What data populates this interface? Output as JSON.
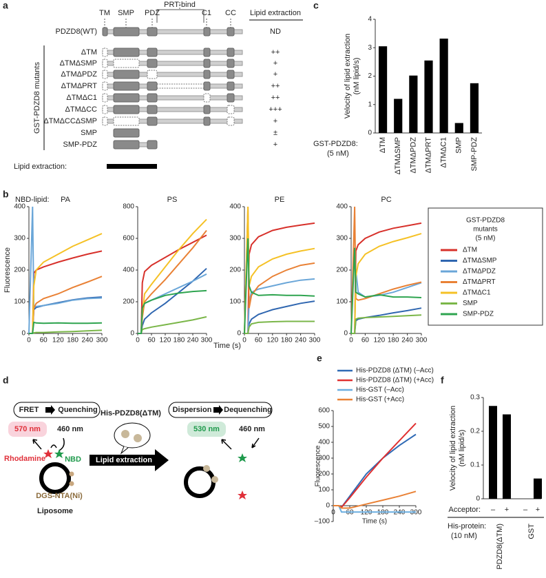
{
  "panel_labels": [
    "a",
    "b",
    "c",
    "d",
    "e",
    "f"
  ],
  "panel_a": {
    "domains": [
      "TM",
      "SMP",
      "PDZ",
      "PRT-bind",
      "C1",
      "CC"
    ],
    "header": "Lipid extraction",
    "group": "GST-PDZD8 mutants",
    "footer": "Lipid extraction:",
    "rows": [
      {
        "name": "PDZD8(WT)",
        "extraction": "ND"
      },
      {
        "name": "ΔTM",
        "extraction": "++"
      },
      {
        "name": "ΔTMΔSMP",
        "extraction": "+"
      },
      {
        "name": "ΔTMΔPDZ",
        "extraction": "+"
      },
      {
        "name": "ΔTMΔPRT",
        "extraction": "++"
      },
      {
        "name": "ΔTMΔC1",
        "extraction": "++"
      },
      {
        "name": "ΔTMΔCC",
        "extraction": "+++"
      },
      {
        "name": "ΔTMΔCCΔSMP",
        "extraction": "+"
      },
      {
        "name": "SMP",
        "extraction": "±"
      },
      {
        "name": "SMP-PDZ",
        "extraction": "+"
      }
    ]
  },
  "panel_b": {
    "prefix": "NBD-lipid:",
    "xlabel": "Time (s)",
    "ylabel": "Fluorescence",
    "legend_title": [
      "GST-PDZD8",
      "mutants",
      "(5 nM)"
    ]
  },
  "panel_d": {
    "left_box": [
      "FRET",
      "Quenching"
    ],
    "right_box": [
      "Dispersion",
      "Dequenching"
    ],
    "emission_left": "570 nm",
    "excitation_left": "460 nm",
    "acceptor": "Rhodamine",
    "donor": "NBD",
    "anchor": "DGS-NTA(Ni)",
    "vesicle": "Liposome",
    "protein": "His-PDZD8(ΔTM)",
    "arrow": "Lipid extraction",
    "emission_right": "530 nm",
    "excitation_right": "460 nm"
  },
  "chart_data": [
    {
      "type": "bar",
      "ylabel": [
        "Velocity of lipid extraction",
        "(nM lipid/s)"
      ],
      "xlabel": [
        "GST-PDZD8:",
        "(5 nM)"
      ],
      "categories": [
        "ΔTM",
        "ΔTMΔSMP",
        "ΔTMΔPDZ",
        "ΔTMΔPRT",
        "ΔTMΔC1",
        "SMP",
        "SMP-PDZ"
      ],
      "values": [
        3.05,
        1.2,
        2.02,
        2.55,
        3.32,
        0.35,
        1.75
      ],
      "color": "#000000",
      "ylim": [
        0,
        4
      ],
      "yticks": [
        0,
        1,
        2,
        3,
        4
      ]
    },
    {
      "type": "line",
      "title": "PA",
      "x": [
        0,
        15,
        20,
        30,
        60,
        120,
        180,
        240,
        300
      ],
      "xlim": [
        0,
        300
      ],
      "xticks": [
        0,
        60,
        120,
        180,
        240,
        300
      ],
      "ylim": [
        0,
        400
      ],
      "yticks": [
        0,
        100,
        200,
        300,
        400
      ],
      "series": [
        {
          "name": "ΔTM",
          "color": "#d7302a",
          "values": [
            0,
            0,
            190,
            200,
            210,
            225,
            238,
            250,
            260
          ]
        },
        {
          "name": "ΔTMΔSMP",
          "color": "#2f66b0",
          "values": [
            0,
            0,
            75,
            82,
            88,
            97,
            106,
            112,
            115
          ]
        },
        {
          "name": "ΔTMΔPDZ",
          "color": "#6aa6d8",
          "values": [
            0,
            400,
            85,
            85,
            88,
            95,
            105,
            110,
            112
          ]
        },
        {
          "name": "ΔTMΔPRT",
          "color": "#e98135",
          "values": [
            0,
            0,
            80,
            95,
            110,
            125,
            145,
            162,
            180
          ]
        },
        {
          "name": "ΔTMΔC1",
          "color": "#f5c125",
          "values": [
            0,
            0,
            150,
            200,
            225,
            250,
            275,
            295,
            315
          ]
        },
        {
          "name": "SMP",
          "color": "#7ab648",
          "values": [
            0,
            0,
            2,
            3,
            3,
            5,
            6,
            8,
            10
          ]
        },
        {
          "name": "SMP-PDZ",
          "color": "#2ea44f",
          "values": [
            0,
            0,
            35,
            33,
            32,
            33,
            32,
            32,
            33
          ]
        }
      ]
    },
    {
      "type": "line",
      "title": "PS",
      "x": [
        0,
        15,
        20,
        30,
        60,
        120,
        180,
        240,
        300
      ],
      "xlim": [
        0,
        300
      ],
      "xticks": [
        0,
        60,
        120,
        180,
        240,
        300
      ],
      "ylim": [
        0,
        800
      ],
      "yticks": [
        0,
        200,
        400,
        600,
        800
      ],
      "series": [
        {
          "color": "#d7302a",
          "values": [
            0,
            0,
            320,
            390,
            430,
            480,
            530,
            575,
            620
          ]
        },
        {
          "color": "#2f66b0",
          "values": [
            0,
            0,
            50,
            90,
            130,
            190,
            260,
            330,
            410
          ]
        },
        {
          "color": "#6aa6d8",
          "values": [
            0,
            0,
            150,
            190,
            210,
            250,
            290,
            330,
            375
          ]
        },
        {
          "color": "#e98135",
          "values": [
            0,
            0,
            100,
            200,
            250,
            340,
            440,
            540,
            650
          ]
        },
        {
          "color": "#f5c125",
          "values": [
            0,
            0,
            130,
            250,
            310,
            420,
            530,
            630,
            720
          ]
        },
        {
          "color": "#7ab648",
          "values": [
            0,
            0,
            25,
            30,
            40,
            55,
            70,
            85,
            105
          ]
        },
        {
          "color": "#2ea44f",
          "values": [
            0,
            0,
            160,
            190,
            210,
            240,
            255,
            265,
            270
          ]
        }
      ]
    },
    {
      "type": "line",
      "title": "PE",
      "x": [
        0,
        15,
        20,
        30,
        60,
        120,
        180,
        240,
        300
      ],
      "xlim": [
        0,
        300
      ],
      "xticks": [
        0,
        60,
        120,
        180,
        240,
        300
      ],
      "ylim": [
        0,
        400
      ],
      "yticks": [
        0,
        100,
        200,
        300,
        400
      ],
      "series": [
        {
          "color": "#d7302a",
          "values": [
            0,
            0,
            250,
            280,
            305,
            325,
            335,
            342,
            348
          ]
        },
        {
          "color": "#2f66b0",
          "values": [
            0,
            0,
            30,
            45,
            60,
            75,
            85,
            95,
            102
          ]
        },
        {
          "color": "#6aa6d8",
          "values": [
            0,
            0,
            100,
            130,
            140,
            150,
            160,
            168,
            172
          ]
        },
        {
          "color": "#e98135",
          "values": [
            0,
            400,
            80,
            120,
            150,
            180,
            200,
            215,
            222
          ]
        },
        {
          "color": "#f5c125",
          "values": [
            0,
            400,
            150,
            180,
            210,
            235,
            250,
            260,
            268
          ]
        },
        {
          "color": "#7ab648",
          "values": [
            0,
            0,
            20,
            30,
            35,
            37,
            38,
            38,
            38
          ]
        },
        {
          "color": "#2ea44f",
          "values": [
            0,
            300,
            150,
            130,
            120,
            122,
            120,
            120,
            118
          ]
        }
      ]
    },
    {
      "type": "line",
      "title": "PC",
      "x": [
        0,
        15,
        20,
        30,
        60,
        120,
        180,
        240,
        300
      ],
      "xlim": [
        0,
        300
      ],
      "xticks": [
        0,
        60,
        120,
        180,
        240,
        300
      ],
      "ylim": [
        0,
        400
      ],
      "yticks": [
        0,
        100,
        200,
        300,
        400
      ],
      "series": [
        {
          "color": "#d7302a",
          "values": [
            0,
            0,
            260,
            280,
            300,
            320,
            332,
            340,
            348
          ]
        },
        {
          "color": "#2f66b0",
          "values": [
            0,
            0,
            40,
            45,
            50,
            57,
            65,
            72,
            80
          ]
        },
        {
          "color": "#6aa6d8",
          "values": [
            0,
            0,
            200,
            130,
            115,
            120,
            130,
            145,
            160
          ]
        },
        {
          "color": "#e98135",
          "values": [
            0,
            400,
            110,
            105,
            110,
            125,
            140,
            152,
            162
          ]
        },
        {
          "color": "#f5c125",
          "values": [
            0,
            0,
            180,
            220,
            250,
            275,
            290,
            302,
            315
          ]
        },
        {
          "color": "#7ab648",
          "values": [
            0,
            0,
            45,
            48,
            50,
            52,
            54,
            56,
            58
          ]
        },
        {
          "color": "#2ea44f",
          "values": [
            0,
            270,
            130,
            125,
            115,
            122,
            115,
            115,
            113
          ]
        }
      ]
    },
    {
      "type": "line",
      "xlabel": "Time (s)",
      "ylabel": "Fluorescence",
      "x": [
        0,
        20,
        30,
        60,
        120,
        180,
        240,
        300
      ],
      "xlim": [
        0,
        300
      ],
      "xticks": [
        0,
        60,
        120,
        180,
        240,
        300
      ],
      "ylim": [
        -100,
        600
      ],
      "yticks": [
        {
          "value": -100,
          "label": "–100"
        },
        0,
        100,
        200,
        300,
        400,
        500,
        600
      ],
      "series": [
        {
          "name": "His-PDZD8 (ΔTM) (–Acc)",
          "color": "#2f6ab5",
          "values": [
            0,
            0,
            -10,
            60,
            200,
            300,
            380,
            450
          ]
        },
        {
          "name": "His-PDZD8 (ΔTM) (+Acc)",
          "color": "#e03030",
          "values": [
            0,
            0,
            -10,
            50,
            180,
            300,
            410,
            520
          ]
        },
        {
          "name": "His-GST (–Acc)",
          "color": "#6aaee0",
          "values": [
            0,
            0,
            -40,
            -40,
            -40,
            -40,
            -40,
            -40
          ]
        },
        {
          "name": "His-GST (+Acc)",
          "color": "#e98135",
          "values": [
            0,
            0,
            -15,
            -15,
            10,
            35,
            60,
            90
          ]
        }
      ]
    },
    {
      "type": "bar",
      "ylabel": [
        "Velocity of lipid extraction",
        "(nM lipid/s)"
      ],
      "category_axis_label": "Acceptor:",
      "categories": [
        "–",
        "+",
        "–",
        "+"
      ],
      "values": [
        0.275,
        0.25,
        0,
        0.06
      ],
      "color": "#000000",
      "ylim": [
        0,
        0.3
      ],
      "yticks": [
        0,
        0.1,
        0.2,
        0.3
      ],
      "group_axis_label": [
        "His-protein:",
        "(10 nM)"
      ],
      "groups": [
        "PDZD8(ΔTM)",
        "GST"
      ]
    }
  ]
}
